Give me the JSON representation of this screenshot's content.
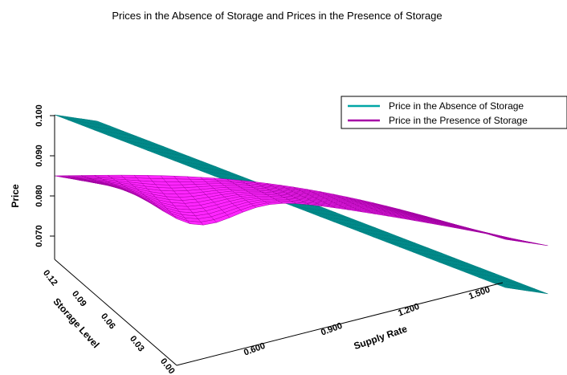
{
  "chart_data": {
    "type": "surface",
    "title": "Prices in the Absence of Storage and Prices in the Presence of Storage",
    "xlabel": "Supply Rate",
    "ylabel": "Storage Level",
    "zlabel": "Price",
    "x_ticks": [
      "0.600",
      "0.900",
      "1.200",
      "1.500"
    ],
    "y_ticks": [
      "0.00",
      "0.03",
      "0.06",
      "0.09",
      "0.12"
    ],
    "z_ticks": [
      "0.070",
      "0.080",
      "0.090",
      "0.100"
    ],
    "xlim": [
      0.5,
      1.6
    ],
    "ylim": [
      0.0,
      0.15
    ],
    "zlim": [
      0.065,
      0.1
    ],
    "legend_position": "top-right",
    "grid": false,
    "series": [
      {
        "name": "Price in the Absence of Storage",
        "color": "#00a6a6",
        "x": [
          0.5,
          1.6
        ],
        "y": [
          0.0,
          0.15
        ],
        "corners": {
          "x_min": 0.1,
          "x_max": 0.0625
        }
      },
      {
        "name": "Price in the Presence of Storage",
        "color": "#ff00ff",
        "x": [
          0.5,
          1.6
        ],
        "y": [
          0.0,
          0.15
        ],
        "corners": {
          "x_min": 0.085,
          "x_max": 0.076
        }
      }
    ]
  }
}
